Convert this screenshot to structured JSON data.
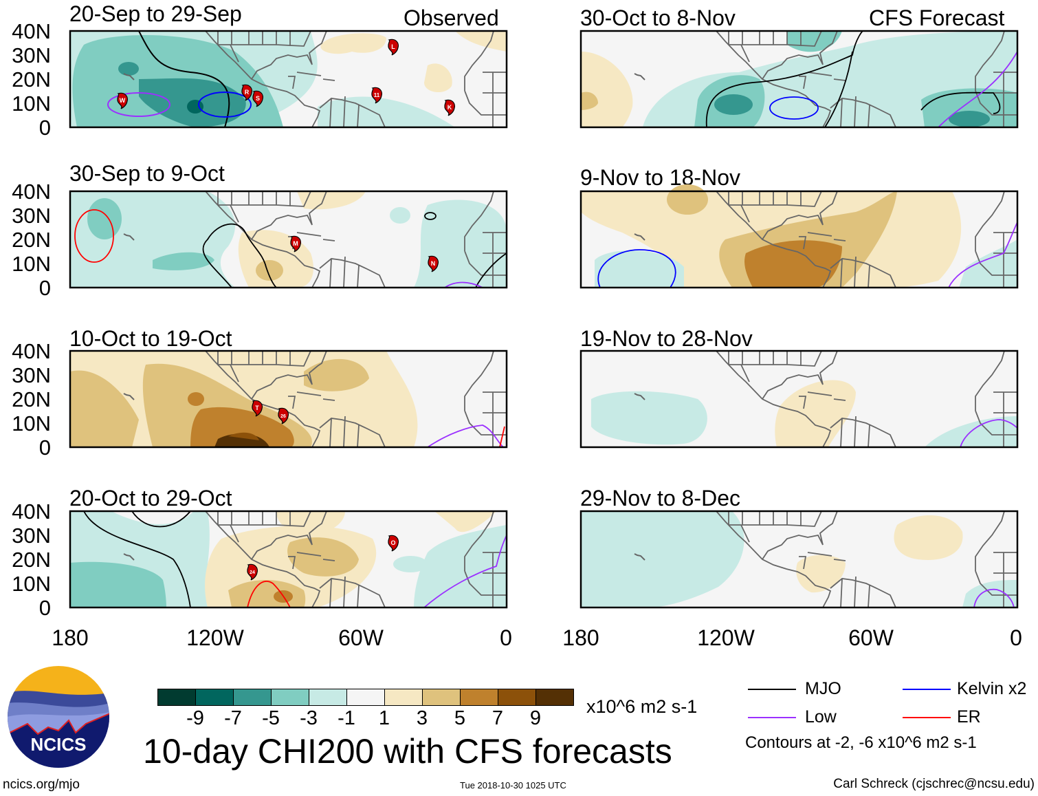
{
  "colors": {
    "scale": [
      "#013b30",
      "#01665e",
      "#35978f",
      "#80cdc1",
      "#c7eae5",
      "#f5f5f5",
      "#f6e8c3",
      "#dfc27d",
      "#bf812d",
      "#8c510a",
      "#543005"
    ],
    "mjo": "#000000",
    "kelvin": "#0000ff",
    "low": "#9b30ff",
    "er": "#ff0000",
    "storm": "#cc0000"
  },
  "headers": {
    "observed": "Observed",
    "forecast": "CFS Forecast"
  },
  "panels": [
    {
      "title": "20-Sep to 29-Sep",
      "storms": [
        "W",
        "R",
        "S",
        "L",
        "11",
        "K"
      ]
    },
    {
      "title": "30-Sep to 9-Oct",
      "storms": [
        "M",
        "N"
      ]
    },
    {
      "title": "10-Oct to 19-Oct",
      "storms": [
        "T",
        "26"
      ]
    },
    {
      "title": "20-Oct to 29-Oct",
      "storms": [
        "24",
        "O"
      ]
    },
    {
      "title": "30-Oct to 8-Nov",
      "storms": []
    },
    {
      "title": "9-Nov to 18-Nov",
      "storms": []
    },
    {
      "title": "19-Nov to 28-Nov",
      "storms": []
    },
    {
      "title": "29-Nov to 8-Dec",
      "storms": []
    }
  ],
  "lat_ticks": [
    "40N",
    "30N",
    "20N",
    "10N",
    "0"
  ],
  "lon_ticks": [
    "180",
    "120W",
    "60W",
    "0"
  ],
  "colorbar": {
    "labels": [
      "-9",
      "-7",
      "-5",
      "-3",
      "-1",
      "1",
      "3",
      "5",
      "7",
      "9"
    ],
    "units": "x10^6 m2 s-1"
  },
  "title": "10-day CHI200 with CFS forecasts",
  "legend": {
    "mjo": "MJO",
    "kelvin": "Kelvin x2",
    "low": "Low",
    "er": "ER",
    "contours": "Contours at -2, -6 x10^6 m2 s-1"
  },
  "footer": {
    "url": "ncics.org/mjo",
    "timestamp": "Tue 2018-10-30 1025 UTC",
    "author": "Carl Schreck (cjschrec@ncsu.edu)"
  },
  "logo": {
    "text": "NCICS"
  }
}
